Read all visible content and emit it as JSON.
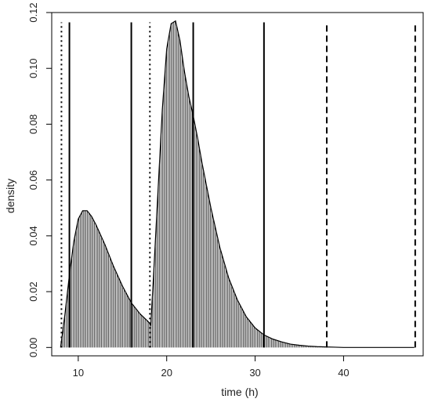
{
  "chart_data": {
    "type": "area",
    "title": "",
    "xlabel": "time (h)",
    "ylabel": "density",
    "xlim": [
      7,
      49
    ],
    "ylim": [
      -0.003,
      0.12
    ],
    "x_ticks": [
      10,
      20,
      30,
      40
    ],
    "y_ticks": [
      0.0,
      0.02,
      0.04,
      0.06,
      0.08,
      0.1,
      0.12
    ],
    "y_tick_labels": [
      "0.00",
      "0.02",
      "0.04",
      "0.06",
      "0.08",
      "0.10",
      "0.12"
    ],
    "grid": false,
    "fill": "vertical-hatch",
    "series": [
      {
        "x": [
          8,
          8.5,
          9,
          9.5,
          10,
          10.5,
          11,
          11.5,
          12,
          13,
          14,
          15,
          16,
          17,
          18,
          18.2,
          18.5,
          19,
          19.5,
          20,
          20.5,
          21,
          21.5,
          22,
          22.5,
          23,
          23.5,
          24,
          25,
          26,
          27,
          28,
          29,
          30,
          31,
          32,
          33,
          34,
          35,
          36,
          37,
          38,
          39,
          40,
          42,
          44,
          46,
          48
        ],
        "y": [
          0.0,
          0.012,
          0.026,
          0.038,
          0.046,
          0.049,
          0.049,
          0.047,
          0.044,
          0.037,
          0.029,
          0.022,
          0.016,
          0.012,
          0.009,
          0.008,
          0.025,
          0.055,
          0.085,
          0.107,
          0.116,
          0.117,
          0.11,
          0.099,
          0.09,
          0.083,
          0.075,
          0.066,
          0.05,
          0.036,
          0.025,
          0.017,
          0.011,
          0.007,
          0.0045,
          0.003,
          0.002,
          0.0012,
          0.0008,
          0.0005,
          0.0003,
          0.0002,
          0.0001,
          0.0,
          0.0,
          0.0,
          0.0,
          0.0
        ]
      }
    ],
    "vlines": [
      {
        "x": 8.1,
        "style": "dotted"
      },
      {
        "x": 9.0,
        "style": "solid"
      },
      {
        "x": 16.0,
        "style": "solid"
      },
      {
        "x": 18.1,
        "style": "dotted"
      },
      {
        "x": 23.0,
        "style": "solid"
      },
      {
        "x": 31.0,
        "style": "solid"
      },
      {
        "x": 38.1,
        "style": "dashed"
      },
      {
        "x": 48.1,
        "style": "dashed"
      }
    ]
  }
}
